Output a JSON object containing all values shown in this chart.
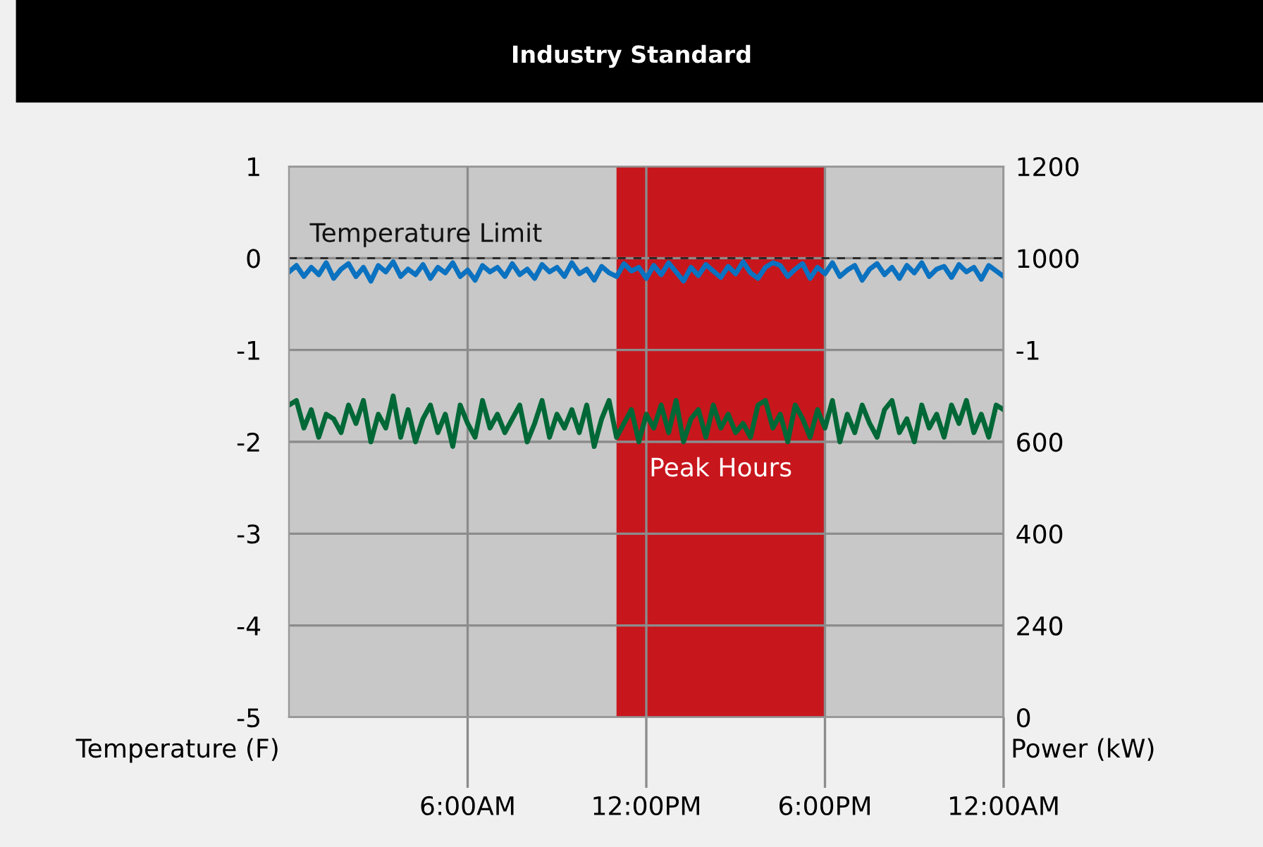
{
  "chart_data": {
    "type": "line",
    "title": "Industry Standard",
    "xlabel": null,
    "ylabel": "Temperature (F)",
    "y2label": "Power (kW)",
    "x": [
      0,
      0.25,
      0.5,
      0.75,
      1,
      1.25,
      1.5,
      1.75,
      2,
      2.25,
      2.5,
      2.75,
      3,
      3.25,
      3.5,
      3.75,
      4,
      4.25,
      4.5,
      4.75,
      5,
      5.25,
      5.5,
      5.75,
      6,
      6.25,
      6.5,
      6.75,
      7,
      7.25,
      7.5,
      7.75,
      8,
      8.25,
      8.5,
      8.75,
      9,
      9.25,
      9.5,
      9.75,
      10,
      10.25,
      10.5,
      10.75,
      11,
      11.25,
      11.5,
      11.75,
      12,
      12.25,
      12.5,
      12.75,
      13,
      13.25,
      13.5,
      13.75,
      14,
      14.25,
      14.5,
      14.75,
      15,
      15.25,
      15.5,
      15.75,
      16,
      16.25,
      16.5,
      16.75,
      17,
      17.25,
      17.5,
      17.75,
      18,
      18.25,
      18.5,
      18.75,
      19,
      19.25,
      19.5,
      19.75,
      20,
      20.25,
      20.5,
      20.75,
      21,
      21.25,
      21.5,
      21.75,
      22,
      22.25,
      22.5,
      22.75,
      23,
      23.25,
      23.5,
      23.75,
      24
    ],
    "series": [
      {
        "color": "#0a72c0",
        "values": [
          -0.15,
          -0.08,
          -0.2,
          -0.1,
          -0.18,
          -0.05,
          -0.22,
          -0.12,
          -0.06,
          -0.2,
          -0.1,
          -0.25,
          -0.08,
          -0.15,
          -0.04,
          -0.2,
          -0.12,
          -0.18,
          -0.07,
          -0.22,
          -0.1,
          -0.16,
          -0.05,
          -0.2,
          -0.13,
          -0.24,
          -0.08,
          -0.15,
          -0.1,
          -0.2,
          -0.06,
          -0.18,
          -0.12,
          -0.22,
          -0.07,
          -0.15,
          -0.1,
          -0.2,
          -0.05,
          -0.17,
          -0.12,
          -0.24,
          -0.09,
          -0.16,
          -0.2,
          -0.06,
          -0.14,
          -0.1,
          -0.22,
          -0.08,
          -0.18,
          -0.05,
          -0.15,
          -0.25,
          -0.1,
          -0.19,
          -0.07,
          -0.14,
          -0.21,
          -0.09,
          -0.17,
          -0.04,
          -0.16,
          -0.22,
          -0.1,
          -0.05,
          -0.08,
          -0.2,
          -0.12,
          -0.06,
          -0.22,
          -0.1,
          -0.17,
          -0.05,
          -0.2,
          -0.13,
          -0.08,
          -0.24,
          -0.12,
          -0.06,
          -0.18,
          -0.1,
          -0.22,
          -0.08,
          -0.16,
          -0.05,
          -0.2,
          -0.12,
          -0.09,
          -0.21,
          -0.07,
          -0.15,
          -0.1,
          -0.23,
          -0.08,
          -0.14,
          -0.2
        ]
      },
      {
        "color": "#006837",
        "values": [
          -1.6,
          -1.55,
          -1.85,
          -1.65,
          -1.95,
          -1.7,
          -1.75,
          -1.9,
          -1.6,
          -1.8,
          -1.55,
          -2.0,
          -1.7,
          -1.85,
          -1.5,
          -1.95,
          -1.65,
          -2.0,
          -1.75,
          -1.6,
          -1.9,
          -1.7,
          -2.05,
          -1.6,
          -1.8,
          -1.95,
          -1.55,
          -1.85,
          -1.7,
          -1.9,
          -1.75,
          -1.6,
          -2.0,
          -1.8,
          -1.55,
          -1.95,
          -1.7,
          -1.85,
          -1.65,
          -1.9,
          -1.6,
          -2.05,
          -1.75,
          -1.55,
          -1.95,
          -1.8,
          -1.65,
          -2.0,
          -1.7,
          -1.85,
          -1.6,
          -1.9,
          -1.55,
          -2.0,
          -1.75,
          -1.65,
          -1.95,
          -1.6,
          -1.85,
          -1.7,
          -1.9,
          -1.8,
          -1.95,
          -1.6,
          -1.55,
          -1.85,
          -1.7,
          -2.0,
          -1.6,
          -1.75,
          -1.95,
          -1.65,
          -1.85,
          -1.55,
          -2.0,
          -1.7,
          -1.9,
          -1.6,
          -1.8,
          -1.95,
          -1.65,
          -1.55,
          -1.9,
          -1.75,
          -2.0,
          -1.6,
          -1.85,
          -1.7,
          -1.95,
          -1.6,
          -1.8,
          -1.55,
          -1.9,
          -1.7,
          -1.95,
          -1.6,
          -1.65
        ]
      }
    ],
    "xlim": [
      0,
      24
    ],
    "xticks": [
      {
        "value": 6,
        "label": "6:00AM"
      },
      {
        "value": 12,
        "label": "12:00PM"
      },
      {
        "value": 18,
        "label": "6:00PM"
      },
      {
        "value": 24,
        "label": "12:00AM"
      }
    ],
    "ylim": [
      -5,
      1
    ],
    "yticks": [
      -5,
      -4,
      -3,
      -2,
      -1,
      0,
      1
    ],
    "y2_categories": [
      "1200",
      "1000",
      "-1",
      "600",
      "400",
      "240",
      "0"
    ],
    "ref_lines": [
      {
        "axis": "y",
        "value": 0,
        "label": "Temperature Limit",
        "color": "#222222",
        "line_style": "dashed"
      }
    ],
    "bands": [
      {
        "axis": "x",
        "from": 11,
        "to": 18,
        "label": "Peak Hours",
        "color": "#c8161d"
      }
    ],
    "grid": true,
    "marker": "none",
    "line_style": "solid"
  }
}
